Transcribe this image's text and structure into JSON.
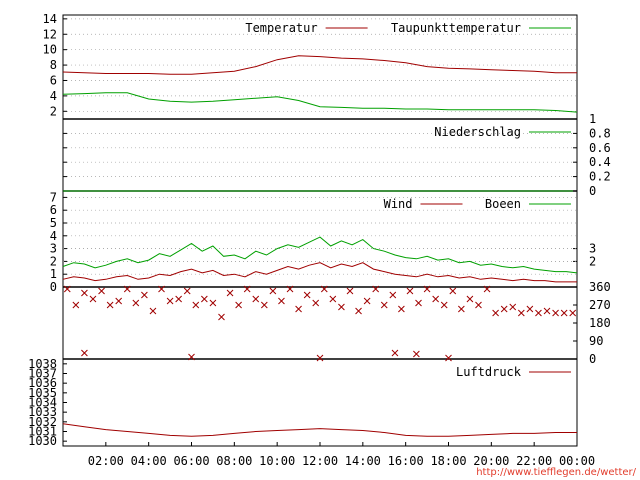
{
  "colors": {
    "red": "#a00000",
    "green": "#00a000",
    "grid": "#a0a0a0",
    "axis": "#000000"
  },
  "credit": "http://www.tiefflegen.de/wetter/",
  "chart_data": [
    {
      "type": "line",
      "panel": "temperature",
      "ylim": [
        1,
        14.5
      ],
      "y_ticks": [
        "2",
        "4",
        "6",
        "8",
        "10",
        "12",
        "14"
      ],
      "grid": true,
      "legend_position": "top-right",
      "x": [
        0,
        1,
        2,
        3,
        4,
        5,
        6,
        7,
        8,
        9,
        10,
        11,
        12,
        13,
        14,
        15,
        16,
        17,
        18,
        19,
        20,
        21,
        22,
        23,
        24
      ],
      "series": [
        {
          "name": "Temperatur",
          "color": "red",
          "values": [
            7.1,
            7.0,
            6.9,
            6.9,
            6.9,
            6.8,
            6.8,
            7.0,
            7.2,
            7.8,
            8.7,
            9.2,
            9.1,
            8.9,
            8.8,
            8.6,
            8.3,
            7.8,
            7.6,
            7.5,
            7.4,
            7.3,
            7.2,
            7.0,
            7.0
          ]
        },
        {
          "name": "Taupunkttemperatur",
          "color": "green",
          "values": [
            4.2,
            4.3,
            4.4,
            4.4,
            3.6,
            3.3,
            3.2,
            3.3,
            3.5,
            3.7,
            3.9,
            3.4,
            2.6,
            2.5,
            2.4,
            2.4,
            2.3,
            2.3,
            2.2,
            2.2,
            2.2,
            2.2,
            2.2,
            2.1,
            1.9
          ]
        }
      ]
    },
    {
      "type": "line",
      "panel": "precipitation",
      "ylim": [
        0,
        1
      ],
      "y_ticks": [
        "0",
        "0.2",
        "0.4",
        "0.6",
        "0.8",
        "1"
      ],
      "legend_position": "top-right",
      "series": [
        {
          "name": "Niederschlag",
          "color": "green",
          "values": [
            0,
            0,
            0,
            0,
            0,
            0,
            0,
            0,
            0,
            0,
            0,
            0,
            0,
            0,
            0,
            0,
            0,
            0,
            0,
            0,
            0,
            0,
            0,
            0,
            0
          ]
        }
      ]
    },
    {
      "type": "line",
      "panel": "wind",
      "ylim": [
        0,
        7.5
      ],
      "y_ticks": [
        "0",
        "1",
        "2",
        "3",
        "4",
        "5",
        "6",
        "7"
      ],
      "y2_ticks": [
        "2",
        "3"
      ],
      "legend_position": "top-right",
      "x": [
        0,
        0.5,
        1,
        1.5,
        2,
        2.5,
        3,
        3.5,
        4,
        4.5,
        5,
        5.5,
        6,
        6.5,
        7,
        7.5,
        8,
        8.5,
        9,
        9.5,
        10,
        10.5,
        11,
        11.5,
        12,
        12.5,
        13,
        13.5,
        14,
        14.5,
        15,
        15.5,
        16,
        16.5,
        17,
        17.5,
        18,
        18.5,
        19,
        19.5,
        20,
        20.5,
        21,
        21.5,
        22,
        22.5,
        23,
        23.5,
        24
      ],
      "series": [
        {
          "name": "Wind",
          "color": "red",
          "values": [
            0.6,
            0.8,
            0.7,
            0.5,
            0.6,
            0.8,
            0.9,
            0.6,
            0.7,
            1.0,
            0.9,
            1.2,
            1.4,
            1.1,
            1.3,
            0.9,
            1.0,
            0.8,
            1.2,
            1.0,
            1.3,
            1.6,
            1.4,
            1.7,
            1.9,
            1.5,
            1.8,
            1.6,
            1.9,
            1.4,
            1.2,
            1.0,
            0.9,
            0.8,
            1.0,
            0.8,
            0.9,
            0.7,
            0.8,
            0.6,
            0.7,
            0.6,
            0.5,
            0.6,
            0.5,
            0.5,
            0.4,
            0.4,
            0.4
          ]
        },
        {
          "name": "Boeen",
          "color": "green",
          "values": [
            1.6,
            1.9,
            1.8,
            1.5,
            1.7,
            2.0,
            2.2,
            1.9,
            2.1,
            2.6,
            2.4,
            2.9,
            3.4,
            2.8,
            3.2,
            2.4,
            2.5,
            2.2,
            2.8,
            2.5,
            3.0,
            3.3,
            3.1,
            3.5,
            3.9,
            3.2,
            3.6,
            3.3,
            3.7,
            3.0,
            2.8,
            2.5,
            2.3,
            2.2,
            2.4,
            2.1,
            2.2,
            1.9,
            2.0,
            1.7,
            1.8,
            1.6,
            1.5,
            1.6,
            1.4,
            1.3,
            1.2,
            1.2,
            1.1
          ]
        }
      ]
    },
    {
      "type": "scatter",
      "panel": "wind-direction",
      "ylim": [
        0,
        360
      ],
      "y2_ticks": [
        "0",
        "90",
        "180",
        "270",
        "360"
      ],
      "series": [
        {
          "name": "",
          "color": "red",
          "points": [
            [
              0.2,
              350
            ],
            [
              0.6,
              270
            ],
            [
              1.0,
              330
            ],
            [
              1.4,
              300
            ],
            [
              1.8,
              340
            ],
            [
              2.2,
              270
            ],
            [
              2.6,
              290
            ],
            [
              3.0,
              350
            ],
            [
              3.4,
              280
            ],
            [
              3.8,
              320
            ],
            [
              4.2,
              240
            ],
            [
              4.6,
              350
            ],
            [
              5.0,
              290
            ],
            [
              5.4,
              300
            ],
            [
              5.8,
              340
            ],
            [
              6.2,
              270
            ],
            [
              6.6,
              300
            ],
            [
              7.0,
              280
            ],
            [
              7.4,
              210
            ],
            [
              7.8,
              330
            ],
            [
              8.2,
              270
            ],
            [
              8.6,
              350
            ],
            [
              9.0,
              300
            ],
            [
              9.4,
              270
            ],
            [
              9.8,
              340
            ],
            [
              10.2,
              290
            ],
            [
              10.6,
              350
            ],
            [
              11.0,
              250
            ],
            [
              11.4,
              320
            ],
            [
              11.8,
              280
            ],
            [
              12.2,
              350
            ],
            [
              12.6,
              300
            ],
            [
              13.0,
              260
            ],
            [
              13.4,
              340
            ],
            [
              13.8,
              240
            ],
            [
              14.2,
              290
            ],
            [
              14.6,
              350
            ],
            [
              15.0,
              270
            ],
            [
              15.4,
              320
            ],
            [
              15.8,
              250
            ],
            [
              16.2,
              340
            ],
            [
              16.6,
              280
            ],
            [
              17.0,
              350
            ],
            [
              17.4,
              300
            ],
            [
              17.8,
              270
            ],
            [
              18.2,
              340
            ],
            [
              18.6,
              250
            ],
            [
              19.0,
              300
            ],
            [
              19.4,
              270
            ],
            [
              19.8,
              350
            ],
            [
              20.2,
              230
            ],
            [
              20.6,
              250
            ],
            [
              21.0,
              260
            ],
            [
              21.4,
              230
            ],
            [
              21.8,
              250
            ],
            [
              22.2,
              230
            ],
            [
              22.6,
              240
            ],
            [
              23.0,
              230
            ],
            [
              23.4,
              230
            ],
            [
              23.8,
              230
            ],
            [
              1.0,
              30
            ],
            [
              6.0,
              10
            ],
            [
              12.0,
              5
            ],
            [
              15.5,
              30
            ],
            [
              16.5,
              25
            ],
            [
              18.0,
              5
            ]
          ]
        }
      ]
    },
    {
      "type": "line",
      "panel": "pressure",
      "ylim": [
        1029.5,
        1038.5
      ],
      "y_ticks": [
        "1030",
        "1031",
        "1032",
        "1033",
        "1034",
        "1035",
        "1036",
        "1037",
        "1038"
      ],
      "legend_position": "top-right",
      "x_ticks": [
        "02:00",
        "04:00",
        "06:00",
        "08:00",
        "10:00",
        "12:00",
        "14:00",
        "16:00",
        "18:00",
        "20:00",
        "22:00",
        "00:00"
      ],
      "x": [
        0,
        1,
        2,
        3,
        4,
        5,
        6,
        7,
        8,
        9,
        10,
        11,
        12,
        13,
        14,
        15,
        16,
        17,
        18,
        19,
        20,
        21,
        22,
        23,
        24
      ],
      "series": [
        {
          "name": "Luftdruck",
          "color": "red",
          "values": [
            1031.8,
            1031.5,
            1031.2,
            1031.0,
            1030.8,
            1030.6,
            1030.5,
            1030.6,
            1030.8,
            1031.0,
            1031.1,
            1031.2,
            1031.3,
            1031.2,
            1031.1,
            1030.9,
            1030.6,
            1030.5,
            1030.5,
            1030.6,
            1030.7,
            1030.8,
            1030.8,
            1030.9,
            1030.9
          ]
        }
      ]
    }
  ]
}
